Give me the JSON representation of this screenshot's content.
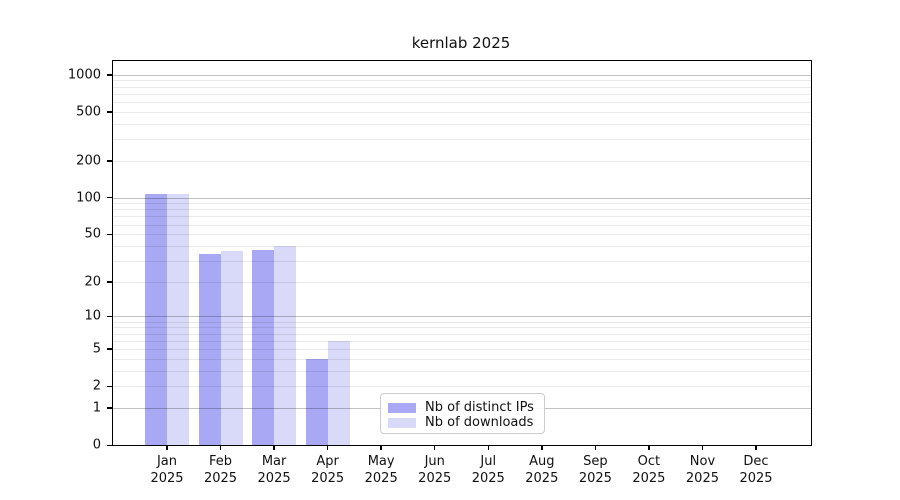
{
  "chart_data": {
    "type": "bar",
    "title": "kernlab 2025",
    "categories": [
      "Jan 2025",
      "Feb 2025",
      "Mar 2025",
      "Apr 2025",
      "May 2025",
      "Jun 2025",
      "Jul 2025",
      "Aug 2025",
      "Sep 2025",
      "Oct 2025",
      "Nov 2025",
      "Dec 2025"
    ],
    "series": [
      {
        "name": "Nb of distinct IPs",
        "color": "#a8a8f4",
        "values": [
          108,
          34,
          37,
          4,
          0,
          0,
          0,
          0,
          0,
          0,
          0,
          0
        ]
      },
      {
        "name": "Nb of downloads",
        "color": "#d9d9f9",
        "values": [
          108,
          36,
          40,
          6,
          0,
          0,
          0,
          0,
          0,
          0,
          0,
          0
        ]
      }
    ],
    "y_axis": {
      "scale": "log1p",
      "max": 1290,
      "ticks": [
        0,
        1,
        2,
        5,
        10,
        20,
        50,
        100,
        200,
        500,
        1000
      ],
      "major_gridlines": [
        1,
        10,
        100,
        1000
      ],
      "minor_gridlines": [
        2,
        3,
        4,
        5,
        6,
        7,
        8,
        9,
        20,
        30,
        40,
        50,
        60,
        70,
        80,
        90,
        200,
        300,
        400,
        500,
        600,
        700,
        800,
        900
      ]
    },
    "grid": true,
    "legend_position": "lower center-left of plot"
  }
}
